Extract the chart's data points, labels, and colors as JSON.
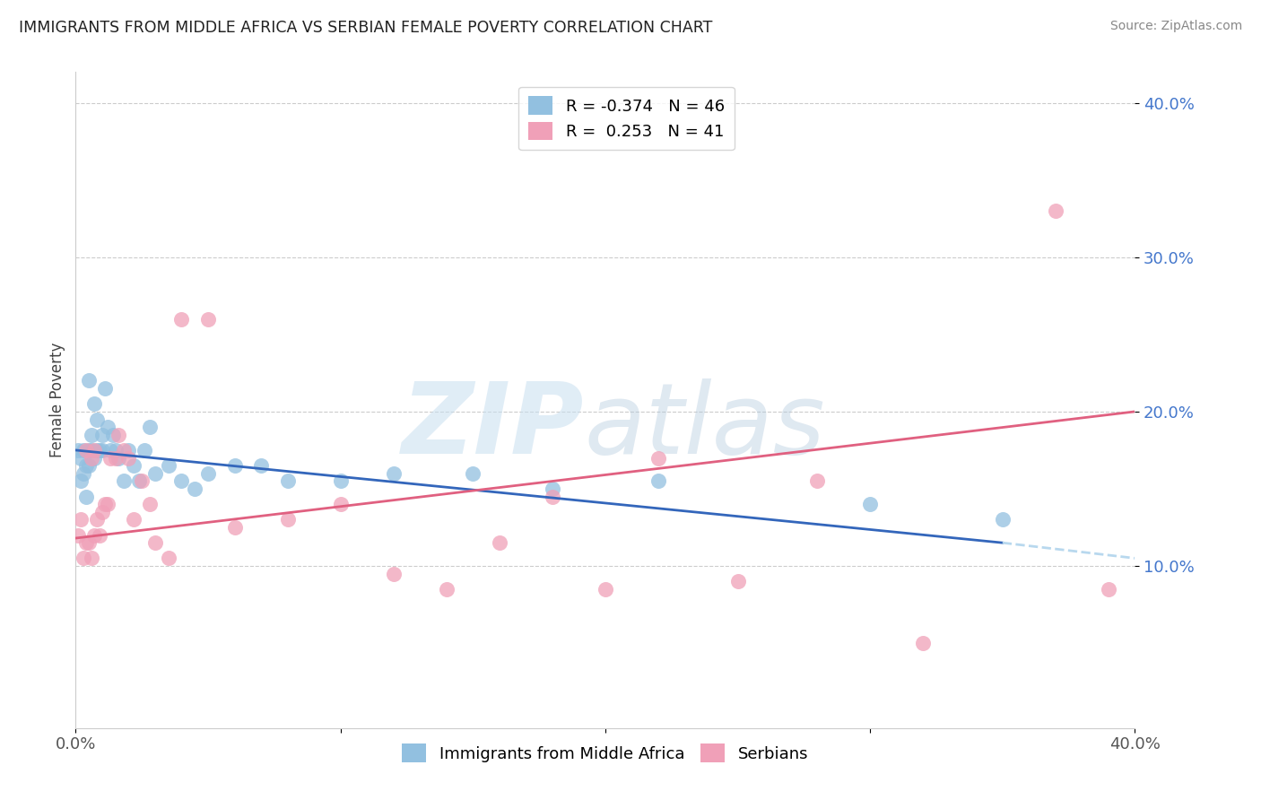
{
  "title": "IMMIGRANTS FROM MIDDLE AFRICA VS SERBIAN FEMALE POVERTY CORRELATION CHART",
  "source": "Source: ZipAtlas.com",
  "ylabel": "Female Poverty",
  "xlim": [
    0.0,
    0.4
  ],
  "ylim": [
    -0.005,
    0.42
  ],
  "blue_R": -0.374,
  "blue_N": 46,
  "pink_R": 0.253,
  "pink_N": 41,
  "blue_color": "#92c0e0",
  "pink_color": "#f0a0b8",
  "blue_line_color": "#3366bb",
  "pink_line_color": "#e06080",
  "dash_line_color": "#b8d8ee",
  "ytick_vals": [
    0.1,
    0.2,
    0.3,
    0.4
  ],
  "ytick_labels": [
    "10.0%",
    "20.0%",
    "30.0%",
    "40.0%"
  ],
  "blue_scatter_x": [
    0.001,
    0.002,
    0.002,
    0.003,
    0.003,
    0.004,
    0.004,
    0.005,
    0.005,
    0.005,
    0.006,
    0.006,
    0.007,
    0.007,
    0.008,
    0.008,
    0.009,
    0.01,
    0.01,
    0.011,
    0.012,
    0.013,
    0.014,
    0.015,
    0.016,
    0.018,
    0.02,
    0.022,
    0.024,
    0.026,
    0.028,
    0.03,
    0.035,
    0.04,
    0.045,
    0.05,
    0.06,
    0.07,
    0.08,
    0.1,
    0.12,
    0.15,
    0.18,
    0.22,
    0.3,
    0.35
  ],
  "blue_scatter_y": [
    0.175,
    0.17,
    0.155,
    0.16,
    0.175,
    0.165,
    0.145,
    0.175,
    0.165,
    0.22,
    0.185,
    0.175,
    0.205,
    0.17,
    0.195,
    0.175,
    0.175,
    0.175,
    0.185,
    0.215,
    0.19,
    0.175,
    0.185,
    0.175,
    0.17,
    0.155,
    0.175,
    0.165,
    0.155,
    0.175,
    0.19,
    0.16,
    0.165,
    0.155,
    0.15,
    0.16,
    0.165,
    0.165,
    0.155,
    0.155,
    0.16,
    0.16,
    0.15,
    0.155,
    0.14,
    0.13
  ],
  "pink_scatter_x": [
    0.001,
    0.002,
    0.003,
    0.004,
    0.004,
    0.005,
    0.006,
    0.006,
    0.007,
    0.007,
    0.008,
    0.009,
    0.01,
    0.011,
    0.012,
    0.013,
    0.015,
    0.016,
    0.018,
    0.02,
    0.022,
    0.025,
    0.028,
    0.03,
    0.035,
    0.04,
    0.05,
    0.06,
    0.08,
    0.1,
    0.12,
    0.14,
    0.16,
    0.18,
    0.2,
    0.22,
    0.25,
    0.28,
    0.32,
    0.37,
    0.39
  ],
  "pink_scatter_y": [
    0.12,
    0.13,
    0.105,
    0.115,
    0.175,
    0.115,
    0.105,
    0.17,
    0.12,
    0.175,
    0.13,
    0.12,
    0.135,
    0.14,
    0.14,
    0.17,
    0.17,
    0.185,
    0.175,
    0.17,
    0.13,
    0.155,
    0.14,
    0.115,
    0.105,
    0.26,
    0.26,
    0.125,
    0.13,
    0.14,
    0.095,
    0.085,
    0.115,
    0.145,
    0.085,
    0.17,
    0.09,
    0.155,
    0.05,
    0.33,
    0.085
  ],
  "blue_line_x0": 0.0,
  "blue_line_x1": 0.35,
  "blue_line_y0": 0.175,
  "blue_line_y1": 0.115,
  "dash_line_x0": 0.35,
  "dash_line_x1": 0.405,
  "dash_line_y0": 0.115,
  "dash_line_y1": 0.104,
  "pink_line_x0": 0.0,
  "pink_line_x1": 0.4,
  "pink_line_y0": 0.118,
  "pink_line_y1": 0.2
}
